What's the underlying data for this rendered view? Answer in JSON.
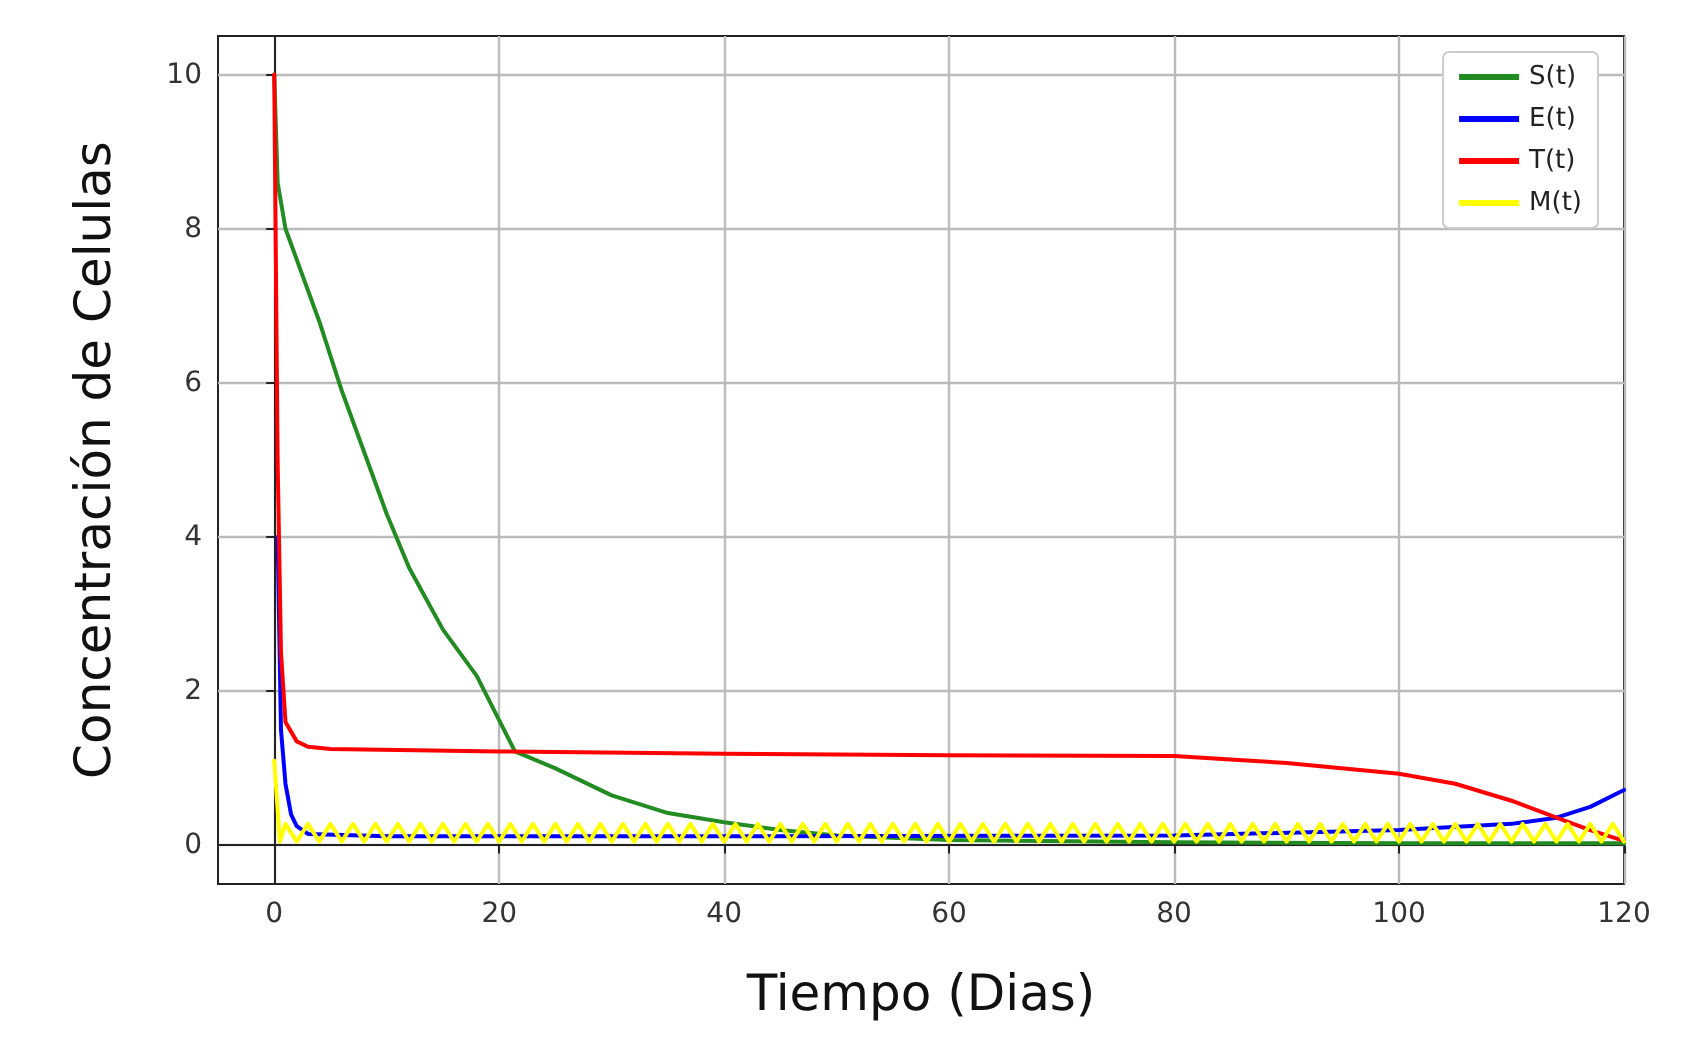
{
  "chart_data": {
    "type": "line",
    "xlabel": "Tiempo (Dias)",
    "ylabel": "Concentración de Celulas",
    "xlim": [
      -5,
      120
    ],
    "xticks": [
      0,
      20,
      40,
      60,
      80,
      100,
      120
    ],
    "ylim": [
      -0.5,
      10.5
    ],
    "yticks": [
      0,
      2,
      4,
      6,
      8,
      10
    ],
    "grid": true,
    "legend": "top right",
    "marker": "none",
    "line_style": "solid",
    "series": [
      {
        "name": "S(t)",
        "color": "#228b22",
        "x": [
          0,
          0.3,
          1,
          2,
          4,
          6,
          8,
          10,
          12,
          15,
          18,
          21.4,
          25,
          30,
          35,
          40,
          45,
          50,
          60,
          80,
          100,
          120
        ],
        "values": [
          10,
          8.6,
          8.0,
          7.6,
          6.8,
          5.9,
          5.1,
          4.3,
          3.6,
          2.8,
          2.2,
          1.22,
          1.0,
          0.65,
          0.42,
          0.3,
          0.2,
          0.13,
          0.07,
          0.04,
          0.03,
          0.03
        ]
      },
      {
        "name": "E(t)",
        "color": "#0000ff",
        "x": [
          0.3,
          0.6,
          1,
          1.5,
          2,
          3,
          10,
          40,
          80,
          100,
          110,
          114,
          117,
          120
        ],
        "values": [
          4,
          1.5,
          0.8,
          0.4,
          0.25,
          0.15,
          0.12,
          0.12,
          0.13,
          0.2,
          0.28,
          0.36,
          0.5,
          0.72
        ]
      },
      {
        "name": "T(t)",
        "color": "#ff0000",
        "x": [
          0,
          0.3,
          0.6,
          1,
          2,
          3,
          5,
          20,
          40,
          60,
          80,
          90,
          100,
          105,
          110,
          114,
          117,
          120
        ],
        "values": [
          10,
          5,
          2.5,
          1.6,
          1.35,
          1.28,
          1.25,
          1.22,
          1.19,
          1.17,
          1.16,
          1.07,
          0.93,
          0.8,
          0.58,
          0.36,
          0.2,
          0.06
        ]
      },
      {
        "name": "M(t)",
        "color": "#ffff00",
        "x": [
          0,
          0.5,
          1,
          2,
          3,
          4,
          5,
          6,
          7,
          8,
          9,
          10,
          11,
          12,
          13,
          14,
          15,
          16,
          17,
          18,
          19,
          20,
          21,
          22,
          23,
          24,
          25,
          26,
          27,
          28,
          29,
          30,
          31,
          32,
          33,
          34,
          35,
          36,
          37,
          38,
          39,
          40,
          41,
          42,
          43,
          44,
          45,
          46,
          47,
          48,
          49,
          50,
          51,
          52,
          53,
          54,
          55,
          56,
          57,
          58,
          59,
          60,
          61,
          62,
          63,
          64,
          65,
          66,
          67,
          68,
          69,
          70,
          71,
          72,
          73,
          74,
          75,
          76,
          77,
          78,
          79,
          80,
          81,
          82,
          83,
          84,
          85,
          86,
          87,
          88,
          89,
          90,
          91,
          92,
          93,
          94,
          95,
          96,
          97,
          98,
          99,
          100,
          101,
          102,
          103,
          104,
          105,
          106,
          107,
          108,
          109,
          110,
          111,
          112,
          113,
          114,
          115,
          116,
          117,
          118,
          119,
          120
        ],
        "values": [
          1.1,
          0.05,
          0.28,
          0.05,
          0.28,
          0.05,
          0.28,
          0.05,
          0.28,
          0.05,
          0.28,
          0.05,
          0.28,
          0.05,
          0.28,
          0.05,
          0.28,
          0.05,
          0.28,
          0.05,
          0.28,
          0.05,
          0.28,
          0.05,
          0.28,
          0.05,
          0.28,
          0.05,
          0.28,
          0.05,
          0.28,
          0.05,
          0.28,
          0.05,
          0.28,
          0.05,
          0.28,
          0.05,
          0.28,
          0.05,
          0.28,
          0.05,
          0.28,
          0.05,
          0.28,
          0.05,
          0.28,
          0.05,
          0.28,
          0.05,
          0.28,
          0.05,
          0.28,
          0.05,
          0.28,
          0.05,
          0.28,
          0.05,
          0.28,
          0.05,
          0.28,
          0.05,
          0.28,
          0.05,
          0.28,
          0.05,
          0.28,
          0.05,
          0.28,
          0.05,
          0.28,
          0.05,
          0.28,
          0.05,
          0.28,
          0.05,
          0.28,
          0.05,
          0.28,
          0.05,
          0.28,
          0.05,
          0.28,
          0.05,
          0.28,
          0.05,
          0.28,
          0.05,
          0.28,
          0.05,
          0.28,
          0.05,
          0.28,
          0.05,
          0.28,
          0.05,
          0.28,
          0.05,
          0.28,
          0.05,
          0.28,
          0.05,
          0.28,
          0.05,
          0.28,
          0.05,
          0.28,
          0.05,
          0.28,
          0.05,
          0.28,
          0.05,
          0.28,
          0.05,
          0.28,
          0.05,
          0.28,
          0.05,
          0.28,
          0.05,
          0.28,
          0.05
        ]
      }
    ]
  }
}
